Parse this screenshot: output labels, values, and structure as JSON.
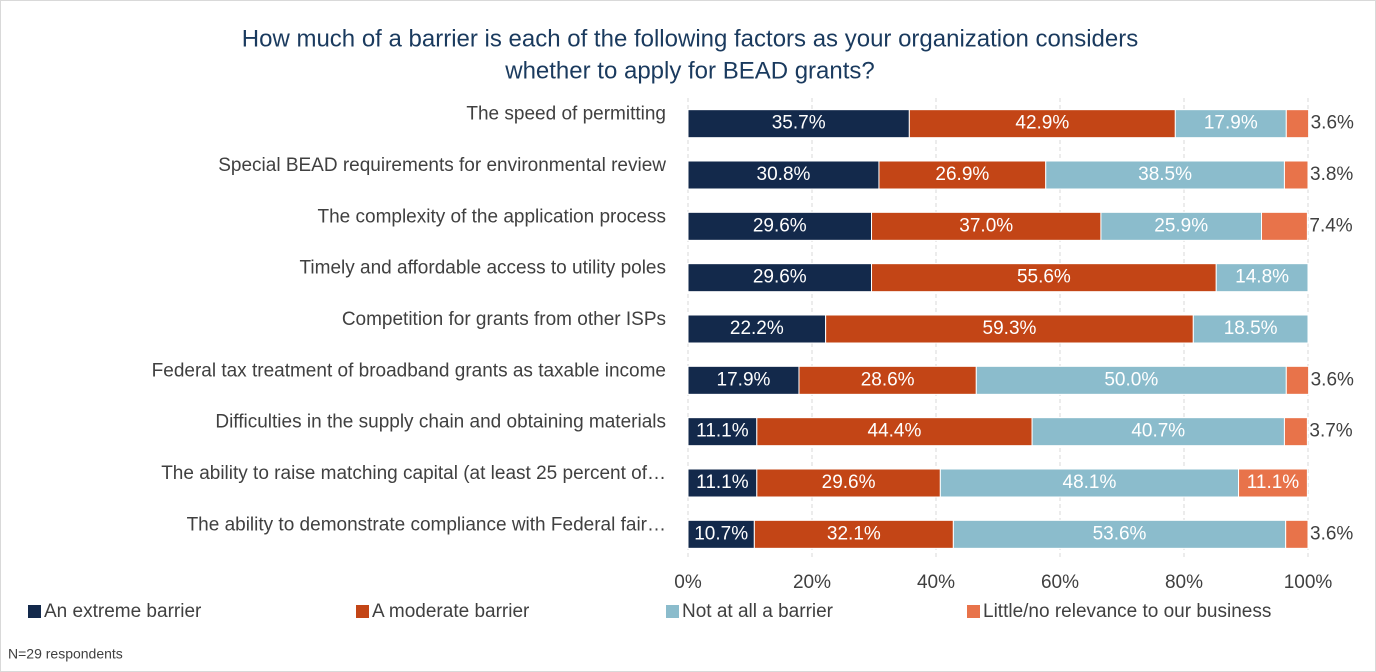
{
  "chart_data": {
    "type": "stacked_barh",
    "title": [
      "How much of a barrier is each of the following factors as your organization considers",
      "whether to apply for BEAD grants?"
    ],
    "categories": [
      "The speed of permitting",
      "Special BEAD requirements for environmental review",
      "The complexity of the application process",
      "Timely and affordable access to utility poles",
      "Competition for grants from other ISPs",
      "Federal tax treatment of broadband grants as taxable income",
      "Difficulties in the supply chain and obtaining materials",
      "The ability to raise matching capital (at least 25 percent of…",
      "The ability to demonstrate compliance with Federal fair…"
    ],
    "series": [
      {
        "name": "An extreme barrier",
        "color": "#13294b",
        "values": [
          35.7,
          30.8,
          29.6,
          29.6,
          22.2,
          17.9,
          11.1,
          11.1,
          10.7
        ],
        "value_labels": [
          "35.7%",
          "30.8%",
          "29.6%",
          "29.6%",
          "22.2%",
          "17.9%",
          "11.1%",
          "11.1%",
          "10.7%"
        ]
      },
      {
        "name": "A moderate barrier",
        "color": "#c34516",
        "values": [
          42.9,
          26.9,
          37.0,
          55.6,
          59.3,
          28.6,
          44.4,
          29.6,
          32.1
        ],
        "value_labels": [
          "42.9%",
          "26.9%",
          "37.0%",
          "55.6%",
          "59.3%",
          "28.6%",
          "44.4%",
          "29.6%",
          "32.1%"
        ]
      },
      {
        "name": "Not at all a barrier",
        "color": "#8bbccc",
        "values": [
          17.9,
          38.5,
          25.9,
          14.8,
          18.5,
          50.0,
          40.7,
          48.1,
          53.6
        ],
        "value_labels": [
          "17.9%",
          "38.5%",
          "25.9%",
          "14.8%",
          "18.5%",
          "50.0%",
          "40.7%",
          "48.1%",
          "53.6%"
        ]
      },
      {
        "name": "Little/no relevance to our business",
        "color": "#e8734a",
        "values": [
          3.6,
          3.8,
          7.4,
          null,
          null,
          3.6,
          3.7,
          11.1,
          3.6
        ],
        "value_labels": [
          "3.6%",
          "3.8%",
          "7.4%",
          null,
          null,
          "3.6%",
          "3.7%",
          "11.1%",
          "3.6%"
        ]
      }
    ],
    "xlim": [
      0,
      100
    ],
    "xticks": [
      {
        "value": 0,
        "label": "0%"
      },
      {
        "value": 20,
        "label": "20%"
      },
      {
        "value": 40,
        "label": "40%"
      },
      {
        "value": 60,
        "label": "60%"
      },
      {
        "value": 80,
        "label": "80%"
      },
      {
        "value": 100,
        "label": "100%"
      }
    ],
    "grid": true,
    "legend": "bottom",
    "note": "N=29 respondents"
  }
}
